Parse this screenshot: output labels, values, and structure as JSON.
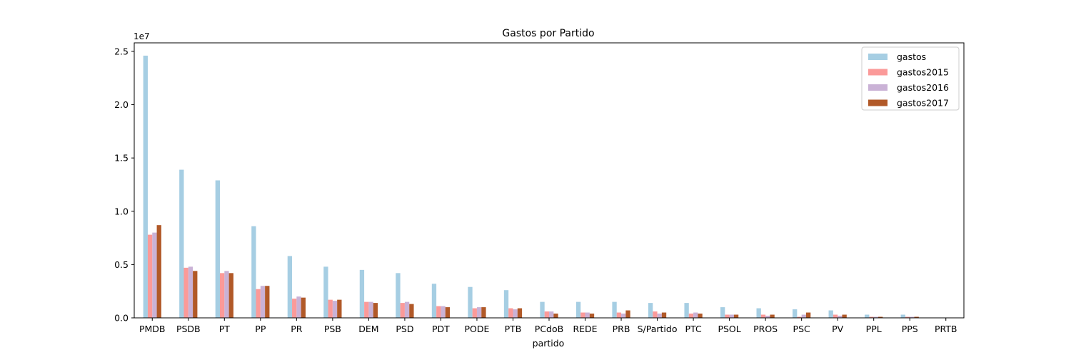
{
  "chart_data": {
    "type": "bar",
    "title": "Gastos por Partido",
    "xlabel": "partido",
    "ylabel": "",
    "y_offset_label": "1e7",
    "ylim": [
      0,
      2.58
    ],
    "y_ticks": [
      0.0,
      0.5,
      1.0,
      1.5,
      2.0,
      2.5
    ],
    "y_tick_labels": [
      "0.0",
      "0.5",
      "1.0",
      "1.5",
      "2.0",
      "2.5"
    ],
    "grid": false,
    "legend_position": "top-right",
    "categories": [
      "PMDB",
      "PSDB",
      "PT",
      "PP",
      "PR",
      "PSB",
      "DEM",
      "PSD",
      "PDT",
      "PODE",
      "PTB",
      "PCdoB",
      "REDE",
      "PRB",
      "S/Partido",
      "PTC",
      "PSOL",
      "PROS",
      "PSC",
      "PV",
      "PPL",
      "PPS",
      "PRTB"
    ],
    "series": [
      {
        "name": "gastos",
        "color": "#a6cee3",
        "values": [
          2.46,
          1.39,
          1.29,
          0.86,
          0.58,
          0.48,
          0.45,
          0.42,
          0.32,
          0.29,
          0.26,
          0.15,
          0.15,
          0.15,
          0.14,
          0.14,
          0.1,
          0.09,
          0.08,
          0.07,
          0.03,
          0.03,
          0.002
        ]
      },
      {
        "name": "gastos2015",
        "color": "#fb9a99",
        "values": [
          0.78,
          0.47,
          0.42,
          0.27,
          0.18,
          0.17,
          0.15,
          0.14,
          0.11,
          0.09,
          0.09,
          0.06,
          0.05,
          0.05,
          0.06,
          0.04,
          0.03,
          0.03,
          0.01,
          0.03,
          0.01,
          0.01,
          0.001
        ]
      },
      {
        "name": "gastos2016",
        "color": "#cab2d6",
        "values": [
          0.8,
          0.48,
          0.44,
          0.3,
          0.2,
          0.16,
          0.15,
          0.15,
          0.11,
          0.1,
          0.08,
          0.06,
          0.05,
          0.04,
          0.04,
          0.05,
          0.03,
          0.02,
          0.03,
          0.02,
          0.01,
          0.01,
          0.001
        ]
      },
      {
        "name": "gastos2017",
        "color": "#b15928",
        "values": [
          0.87,
          0.44,
          0.42,
          0.3,
          0.19,
          0.17,
          0.14,
          0.13,
          0.1,
          0.1,
          0.09,
          0.04,
          0.04,
          0.07,
          0.05,
          0.04,
          0.03,
          0.03,
          0.05,
          0.03,
          0.01,
          0.01,
          0.001
        ]
      }
    ]
  }
}
